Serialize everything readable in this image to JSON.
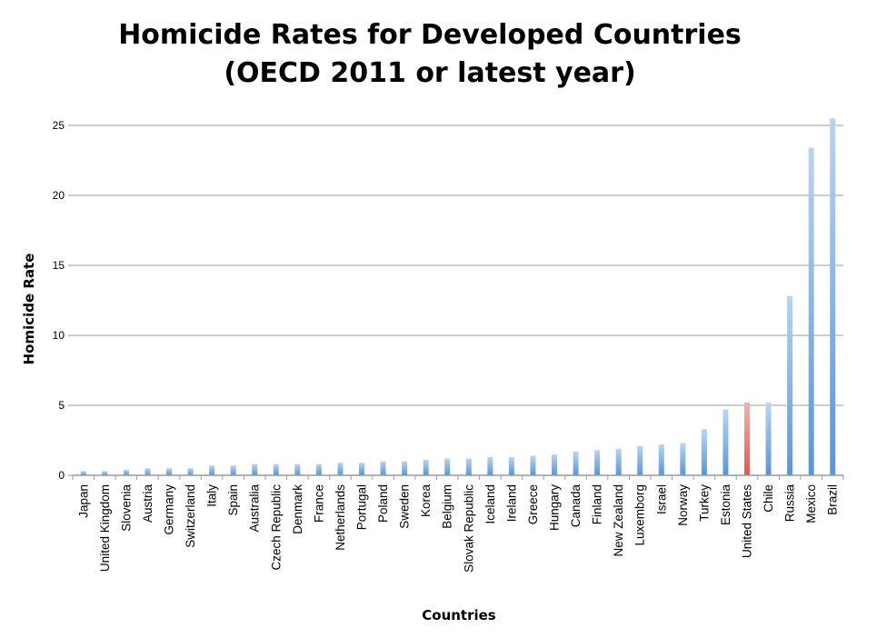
{
  "chart_data": {
    "type": "bar",
    "title": [
      "Homicide Rates for Developed Countries",
      "(OECD 2011 or latest year)"
    ],
    "xlabel": "Countries",
    "ylabel": "Homicide Rate",
    "ylim": [
      0,
      25
    ],
    "yticks": [
      0,
      5,
      10,
      15,
      20,
      25
    ],
    "grid": true,
    "highlight": "United States",
    "colors": {
      "bar": "#5b95d6",
      "bar_light": "#b9d4f1",
      "highlight": "#e05a55",
      "highlight_light": "#f3b1ad",
      "grid": "#bdbdbd",
      "axis": "#9a9a9a"
    },
    "categories": [
      "Japan",
      "United Kingdom",
      "Slovenia",
      "Austria",
      "Germany",
      "Switzerland",
      "Italy",
      "Spain",
      "Australia",
      "Czech Republic",
      "Denmark",
      "France",
      "Netherlands",
      "Portugal",
      "Poland",
      "Sweden",
      "Korea",
      "Belgium",
      "Slovak Republic",
      "Iceland",
      "Ireland",
      "Greece",
      "Hungary",
      "Canada",
      "Finland",
      "New Zealand",
      "Luxemborg",
      "Israel",
      "Norway",
      "Turkey",
      "Estonia",
      "United States",
      "Chile",
      "Russia",
      "Mexico",
      "Brazil"
    ],
    "values": [
      0.3,
      0.3,
      0.4,
      0.5,
      0.5,
      0.5,
      0.7,
      0.7,
      0.8,
      0.8,
      0.8,
      0.8,
      0.9,
      0.9,
      1.0,
      1.0,
      1.1,
      1.2,
      1.2,
      1.3,
      1.3,
      1.4,
      1.5,
      1.7,
      1.8,
      1.9,
      2.1,
      2.2,
      2.3,
      3.3,
      4.7,
      5.2,
      5.2,
      12.8,
      23.4,
      25.5
    ]
  }
}
